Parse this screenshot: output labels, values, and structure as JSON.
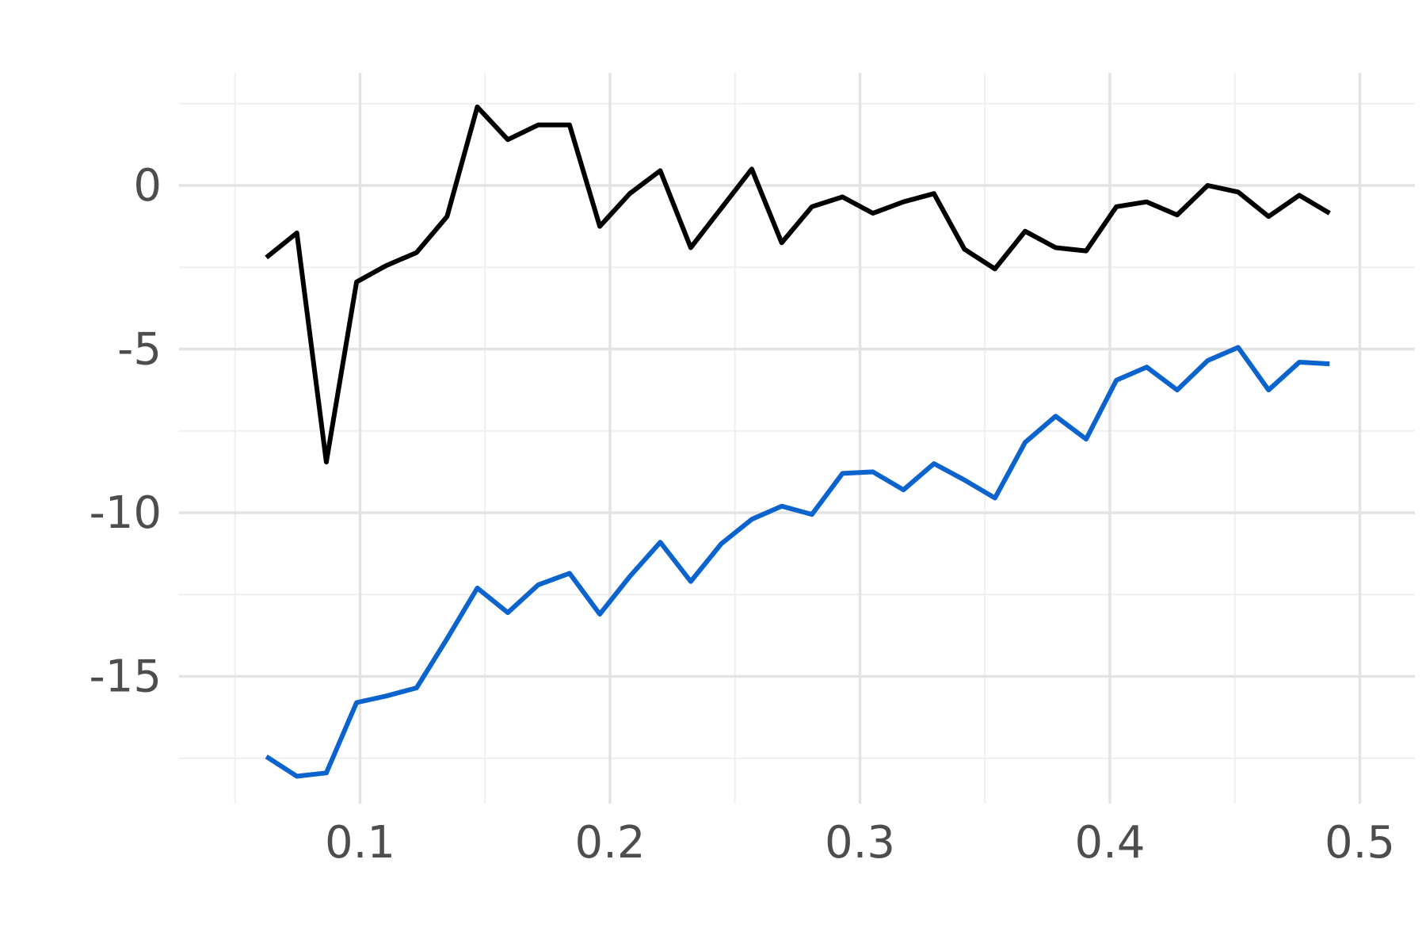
{
  "chart_data": {
    "type": "line",
    "title": "",
    "xlabel": "",
    "ylabel": "",
    "xlim": [
      0.05,
      0.51
    ],
    "ylim": [
      -18.9,
      3.4
    ],
    "grid": true,
    "legend": "none",
    "x_ticks": [
      0.1,
      0.2,
      0.3,
      0.4,
      0.5
    ],
    "x_tick_labels": [
      "0.1",
      "0.2",
      "0.3",
      "0.4",
      "0.5"
    ],
    "y_ticks": [
      0,
      -5,
      -10,
      -15
    ],
    "y_tick_labels": [
      "0",
      "-5",
      "-10",
      "-15"
    ],
    "x_minor_ticks": [
      0.05,
      0.15,
      0.25,
      0.35,
      0.45
    ],
    "y_minor_ticks": [
      2.5,
      -2.5,
      -7.5,
      -12.5,
      -17.5
    ],
    "x": [
      0.0625,
      0.0747,
      0.0865,
      0.0986,
      0.1104,
      0.1226,
      0.1348,
      0.1469,
      0.1591,
      0.1713,
      0.1838,
      0.1959,
      0.2079,
      0.2201,
      0.2323,
      0.2445,
      0.2567,
      0.2687,
      0.2808,
      0.293,
      0.3052,
      0.3174,
      0.3296,
      0.3418,
      0.354,
      0.3661,
      0.3783,
      0.3905,
      0.4026,
      0.4147,
      0.4269,
      0.4391,
      0.4513,
      0.4635,
      0.4758,
      0.4879
    ],
    "series": [
      {
        "color": "#000000",
        "values": [
          -2.2,
          -1.45,
          -8.45,
          -2.95,
          -2.45,
          -2.05,
          -0.95,
          2.4,
          1.4,
          1.85,
          1.85,
          -1.25,
          -0.25,
          0.45,
          -1.9,
          -0.7,
          0.5,
          -1.75,
          -0.65,
          -0.35,
          -0.85,
          -0.5,
          -0.25,
          -1.95,
          -2.55,
          -1.4,
          -1.9,
          -2.0,
          -0.65,
          -0.5,
          -0.9,
          0.0,
          -0.2,
          -0.95,
          -0.3,
          -0.85
        ]
      },
      {
        "color": "#0b63ce",
        "values": [
          -17.45,
          -18.05,
          -17.95,
          -15.8,
          -15.6,
          -15.35,
          -13.85,
          -12.3,
          -13.05,
          -12.2,
          -11.85,
          -13.1,
          -11.95,
          -10.9,
          -12.1,
          -10.95,
          -10.2,
          -9.8,
          -10.05,
          -8.8,
          -8.75,
          -9.3,
          -8.5,
          -9.0,
          -9.55,
          -7.85,
          -7.05,
          -7.75,
          -5.95,
          -5.55,
          -6.25,
          -5.35,
          -4.95,
          -6.25,
          -5.4,
          -5.45
        ]
      }
    ]
  }
}
